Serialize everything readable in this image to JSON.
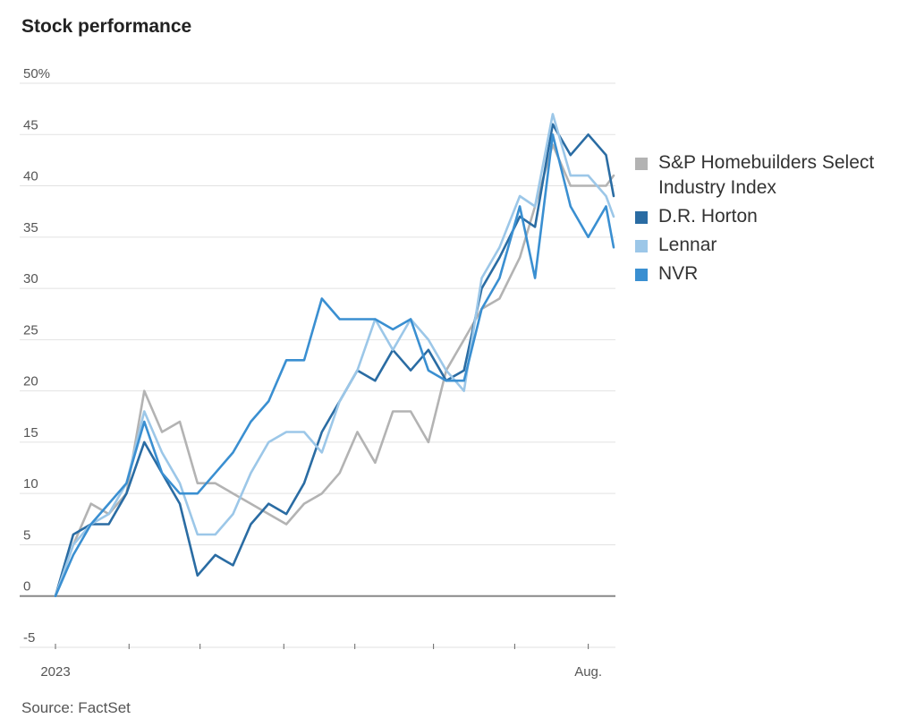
{
  "chart_data": {
    "type": "line",
    "title": "Stock performance",
    "source": "Source: FactSet",
    "xlabel": "",
    "ylabel": "",
    "ylim": [
      -5,
      50
    ],
    "y_ticks": [
      {
        "value": 50,
        "label": "50%"
      },
      {
        "value": 45,
        "label": "45"
      },
      {
        "value": 40,
        "label": "40"
      },
      {
        "value": 35,
        "label": "35"
      },
      {
        "value": 30,
        "label": "30"
      },
      {
        "value": 25,
        "label": "25"
      },
      {
        "value": 20,
        "label": "20"
      },
      {
        "value": 15,
        "label": "15"
      },
      {
        "value": 10,
        "label": "10"
      },
      {
        "value": 5,
        "label": "5"
      },
      {
        "value": 0,
        "label": "0"
      },
      {
        "value": -5,
        "label": "-5"
      }
    ],
    "x_ticks": [
      {
        "date": "2023-01-03",
        "label": "2023"
      },
      {
        "date": "2023-02-01",
        "label": ""
      },
      {
        "date": "2023-03-01",
        "label": ""
      },
      {
        "date": "2023-04-03",
        "label": ""
      },
      {
        "date": "2023-05-01",
        "label": ""
      },
      {
        "date": "2023-06-01",
        "label": ""
      },
      {
        "date": "2023-07-03",
        "label": ""
      },
      {
        "date": "2023-08-01",
        "label": "Aug."
      }
    ],
    "x": [
      "2023-01-03",
      "2023-01-10",
      "2023-01-17",
      "2023-01-24",
      "2023-01-31",
      "2023-02-07",
      "2023-02-14",
      "2023-02-21",
      "2023-02-28",
      "2023-03-07",
      "2023-03-14",
      "2023-03-21",
      "2023-03-28",
      "2023-04-04",
      "2023-04-11",
      "2023-04-18",
      "2023-04-25",
      "2023-05-02",
      "2023-05-09",
      "2023-05-16",
      "2023-05-23",
      "2023-05-30",
      "2023-06-06",
      "2023-06-13",
      "2023-06-20",
      "2023-06-27",
      "2023-07-05",
      "2023-07-11",
      "2023-07-18",
      "2023-07-25",
      "2023-08-01",
      "2023-08-08",
      "2023-08-11"
    ],
    "grid": true,
    "legend_placement": "right",
    "series": [
      {
        "name": "S&P Homebuilders Select Industry Index",
        "color": "#b3b3b3",
        "values": [
          0,
          5,
          9,
          8,
          10,
          20,
          16,
          17,
          11,
          11,
          10,
          9,
          8,
          7,
          9,
          10,
          12,
          16,
          13,
          18,
          18,
          15,
          22,
          25,
          28,
          29,
          33,
          38,
          44,
          40,
          40,
          40,
          41
        ]
      },
      {
        "name": "D.R. Horton",
        "color": "#2a6ca3",
        "values": [
          0,
          6,
          7,
          7,
          10,
          15,
          12,
          9,
          2,
          4,
          3,
          7,
          9,
          8,
          11,
          16,
          19,
          22,
          21,
          24,
          22,
          24,
          21,
          22,
          30,
          33,
          37,
          36,
          46,
          43,
          45,
          43,
          39
        ]
      },
      {
        "name": "Lennar",
        "color": "#9cc7e8",
        "values": [
          0,
          5,
          7,
          8,
          11,
          18,
          14,
          11,
          6,
          6,
          8,
          12,
          15,
          16,
          16,
          14,
          19,
          22,
          27,
          24,
          27,
          25,
          22,
          20,
          31,
          34,
          39,
          38,
          47,
          41,
          41,
          39,
          37
        ]
      },
      {
        "name": "NVR",
        "color": "#3a8fd1",
        "values": [
          0,
          4,
          7,
          9,
          11,
          17,
          12,
          10,
          10,
          12,
          14,
          17,
          19,
          23,
          23,
          29,
          27,
          27,
          27,
          26,
          27,
          22,
          21,
          21,
          28,
          31,
          38,
          31,
          45,
          38,
          35,
          38,
          34
        ]
      }
    ]
  }
}
